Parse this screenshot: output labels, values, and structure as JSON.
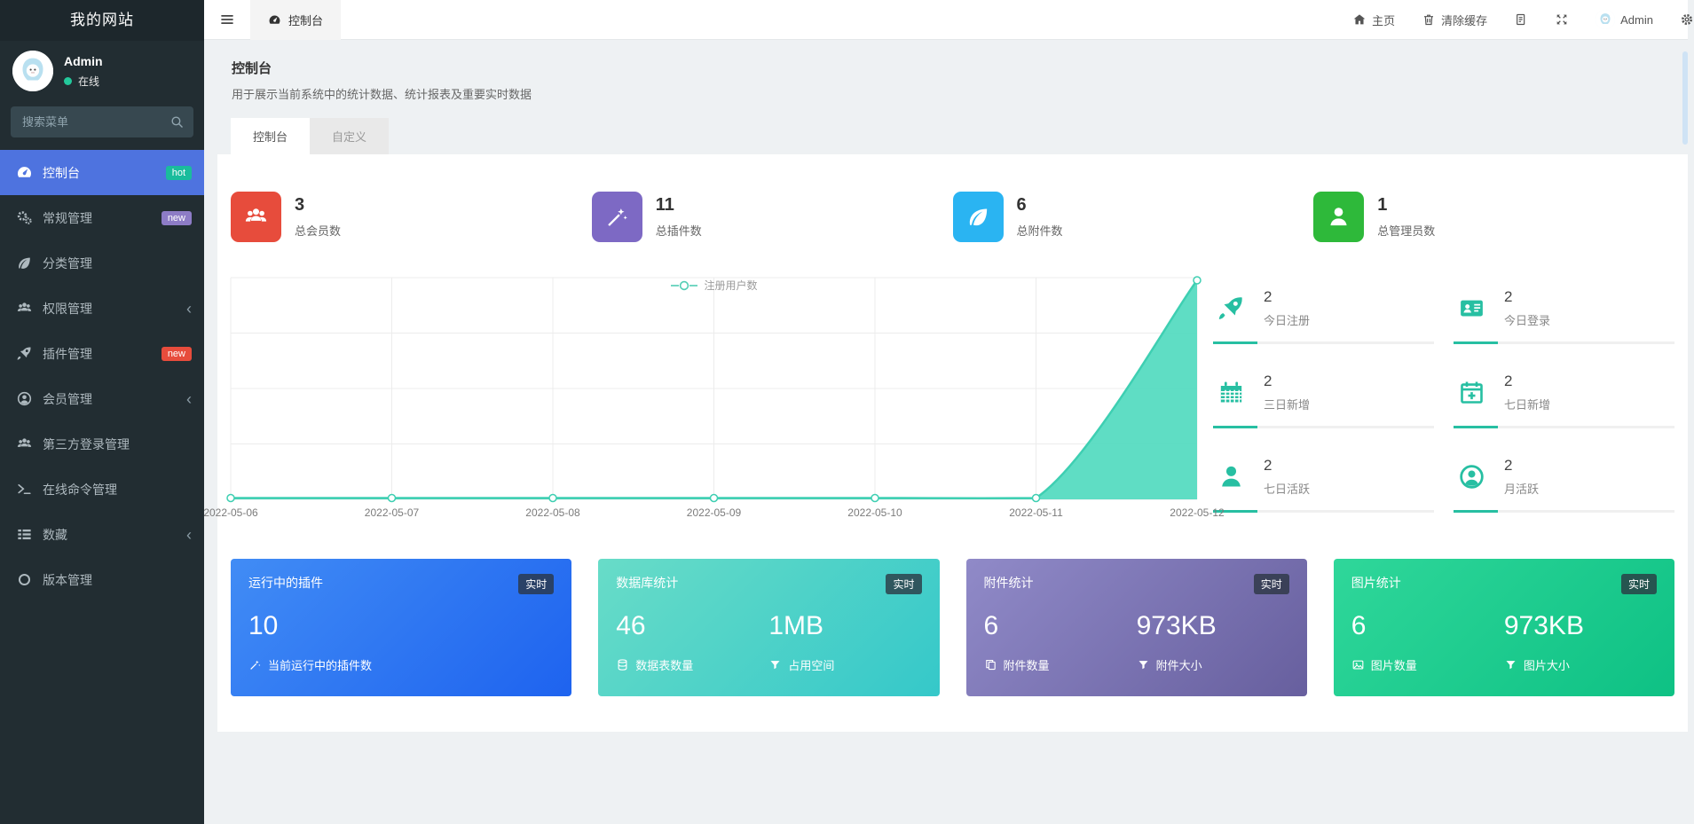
{
  "app": {
    "brand": "我的网站"
  },
  "colors": {
    "sidebar_bg": "#222d32",
    "menu_active_bg": "#4e73df",
    "accent_teal": "#27bfa2",
    "badge_hot": "#1abc9c",
    "badge_new_purple": "#8d7cc6",
    "badge_new_red": "#e74c3c",
    "stat_red": "#e74c3c",
    "stat_purple": "#7d69c4",
    "stat_blue": "#2ab4f2",
    "stat_green": "#2eb93a",
    "chart_line": "#3ecfb2",
    "chart_fill": "#56dbc1"
  },
  "icons": {
    "bars": "☰ hamburger",
    "tachometer": "gauge dial",
    "gears": "double gear",
    "leaf": "leaf",
    "users": "user group",
    "rocket": "rocket",
    "user-circle": "person in circle",
    "user": "person",
    "terminal": ">_ prompt",
    "th-list": "list rows",
    "circle": "circle outline",
    "chevron-left": "‹",
    "search": "magnifier",
    "home": "house",
    "trash": "trash can",
    "document": "page with lines",
    "fullscreen": "four arrows",
    "gear": "gear",
    "id-card": "id card",
    "calendar": "calendar grid",
    "calendar-plus": "calendar with plus",
    "wand": "magic wand",
    "database": "cylinder stack",
    "filter": "funnel",
    "copy": "two pages",
    "image": "picture"
  },
  "sidebar": {
    "user": {
      "name": "Admin",
      "status": "在线"
    },
    "search_placeholder": "搜索菜单",
    "items": [
      {
        "label": "控制台",
        "icon": "tachometer",
        "active": true,
        "badge": "hot",
        "badge_style": "background:#1abc9c"
      },
      {
        "label": "常规管理",
        "icon": "gears",
        "badge": "new",
        "badge_style": "background:#8d7cc6"
      },
      {
        "label": "分类管理",
        "icon": "leaf"
      },
      {
        "label": "权限管理",
        "icon": "users",
        "chevron": "‹"
      },
      {
        "label": "插件管理",
        "icon": "rocket",
        "badge": "new",
        "badge_style": "background:#e74c3c"
      },
      {
        "label": "会员管理",
        "icon": "user-circle",
        "chevron": "‹"
      },
      {
        "label": "第三方登录管理",
        "icon": "users"
      },
      {
        "label": "在线命令管理",
        "icon": "terminal"
      },
      {
        "label": "数藏",
        "icon": "th-list",
        "chevron": "‹"
      },
      {
        "label": "版本管理",
        "icon": "circle"
      }
    ]
  },
  "topbar": {
    "menu_tab": "控制台",
    "home": "主页",
    "clear_cache": "清除缓存",
    "user": "Admin"
  },
  "header": {
    "title": "控制台",
    "subtitle": "用于展示当前系统中的统计数据、统计报表及重要实时数据",
    "tabs": [
      {
        "label": "控制台",
        "active": true
      },
      {
        "label": "自定义",
        "active": false
      }
    ]
  },
  "stats": [
    {
      "value": "3",
      "label": "总会员数",
      "icon": "users",
      "style": "background:#e74c3c"
    },
    {
      "value": "11",
      "label": "总插件数",
      "icon": "wand",
      "style": "background:#7d69c4"
    },
    {
      "value": "6",
      "label": "总附件数",
      "icon": "leaf",
      "style": "background:#2ab4f2"
    },
    {
      "value": "1",
      "label": "总管理员数",
      "icon": "user",
      "style": "background:#2eb93a"
    }
  ],
  "chart_data": {
    "type": "area",
    "legend": [
      "注册用户数"
    ],
    "legend_position": "top-center",
    "x": [
      "2022-05-06",
      "2022-05-07",
      "2022-05-08",
      "2022-05-09",
      "2022-05-10",
      "2022-05-11",
      "2022-05-12"
    ],
    "series": [
      {
        "name": "注册用户数",
        "values": [
          0,
          0,
          0,
          0,
          0,
          0,
          2
        ]
      }
    ],
    "ylim": [
      0,
      2
    ],
    "grid": true,
    "line_color": "#3ecfb2",
    "fill_color": "#56dbc1"
  },
  "quick_stats": [
    {
      "value": "2",
      "label": "今日注册",
      "icon": "rocket",
      "progress": 20
    },
    {
      "value": "2",
      "label": "今日登录",
      "icon": "id-card",
      "progress": 20
    },
    {
      "value": "2",
      "label": "三日新增",
      "icon": "calendar",
      "progress": 20
    },
    {
      "value": "2",
      "label": "七日新增",
      "icon": "calendar-plus",
      "progress": 20
    },
    {
      "value": "2",
      "label": "七日活跃",
      "icon": "user",
      "progress": 20
    },
    {
      "value": "2",
      "label": "月活跃",
      "icon": "user-circle",
      "progress": 20
    }
  ],
  "panels": [
    {
      "title": "运行中的插件",
      "badge": "实时",
      "style": "background:linear-gradient(135deg,#418cf5,#1e63ef)",
      "metrics": [
        {
          "value": "10",
          "label": "当前运行中的插件数",
          "icon": "wand"
        }
      ]
    },
    {
      "title": "数据库统计",
      "badge": "实时",
      "style": "background:linear-gradient(135deg,#68dcc8,#35c8c9)",
      "metrics": [
        {
          "value": "46",
          "label": "数据表数量",
          "icon": "database"
        },
        {
          "value": "1MB",
          "label": "占用空间",
          "icon": "filter"
        }
      ]
    },
    {
      "title": "附件统计",
      "badge": "实时",
      "style": "background:linear-gradient(135deg,#908ac8,#675f9e)",
      "metrics": [
        {
          "value": "6",
          "label": "附件数量",
          "icon": "copy"
        },
        {
          "value": "973KB",
          "label": "附件大小",
          "icon": "filter"
        }
      ]
    },
    {
      "title": "图片统计",
      "badge": "实时",
      "style": "background:linear-gradient(135deg,#2fd79a,#0ec184)",
      "metrics": [
        {
          "value": "6",
          "label": "图片数量",
          "icon": "image"
        },
        {
          "value": "973KB",
          "label": "图片大小",
          "icon": "filter"
        }
      ]
    }
  ]
}
